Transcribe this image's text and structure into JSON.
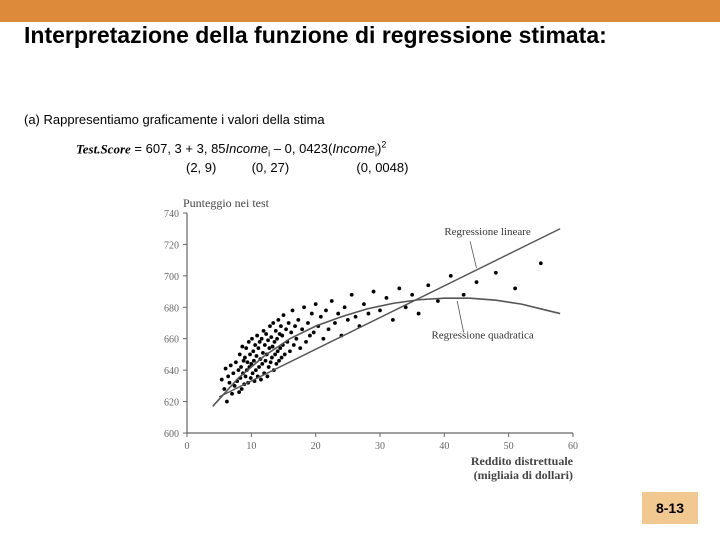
{
  "colors": {
    "accent": "#dd8a3a",
    "badge_bg": "#f0c890",
    "text": "#000000",
    "axis": "#666666",
    "scatter": "#000000",
    "line_linear": "#555555",
    "line_quad": "#555555",
    "chart_bg": "#ffffff"
  },
  "heading": {
    "text": "Interpretazione della funzione di regressione stimata:",
    "fontsize_pt": 23
  },
  "item_label": "(a)  Rappresentiamo graficamente i valori della stima",
  "item_fontsize_pt": 13,
  "equation": {
    "lhs": "Test.Score",
    "rhs_parts": {
      "eq": " = ",
      "c0": "607, 3",
      "plus": " + ",
      "c1": "3, 85",
      "var1": "Income",
      "minus": " – ",
      "c2": "0, 0423(",
      "var2": "Income",
      "close": ")",
      "sup": "2"
    },
    "se": {
      "s0": "(2, 9)",
      "s1": "(0, 27)",
      "s2": "(0, 0048)"
    },
    "fontsize_pt": 13
  },
  "page_number": "8-13",
  "chart": {
    "type": "scatter",
    "ylabel": "Punteggio nei test",
    "xlabel_line1": "Reddito distrettuale",
    "xlabel_line2": "(migliaia di dollari)",
    "label_fontsize_pt": 12,
    "tick_fontsize_pt": 10,
    "xlim": [
      0,
      60
    ],
    "ylim": [
      600,
      740
    ],
    "xticks": [
      0,
      10,
      20,
      30,
      40,
      50,
      60
    ],
    "yticks": [
      600,
      620,
      640,
      660,
      680,
      700,
      720,
      740
    ],
    "annotations": {
      "linear": "Regressione lineare",
      "quadratic": "Regressione quadratica"
    },
    "linear_line": {
      "x0": 5,
      "y0": 623,
      "x1": 58,
      "y1": 730,
      "width": 1.4
    },
    "quad_curve": {
      "pts": [
        [
          4,
          617
        ],
        [
          8,
          635
        ],
        [
          12,
          649
        ],
        [
          16,
          660
        ],
        [
          20,
          668
        ],
        [
          24,
          674
        ],
        [
          28,
          679
        ],
        [
          32,
          682.5
        ],
        [
          36,
          684.8
        ],
        [
          40,
          685.8
        ],
        [
          44,
          685.8
        ],
        [
          48,
          684.5
        ],
        [
          52,
          682
        ],
        [
          56,
          678
        ],
        [
          58,
          676
        ]
      ],
      "width": 1.6
    },
    "scatter_points": [
      [
        5.4,
        634
      ],
      [
        5.8,
        628
      ],
      [
        6.0,
        641
      ],
      [
        6.2,
        620
      ],
      [
        6.4,
        636
      ],
      [
        6.6,
        632
      ],
      [
        6.8,
        643
      ],
      [
        7.0,
        625
      ],
      [
        7.2,
        638
      ],
      [
        7.4,
        630
      ],
      [
        7.6,
        645
      ],
      [
        7.8,
        633
      ],
      [
        8.0,
        640
      ],
      [
        8.1,
        626
      ],
      [
        8.2,
        650
      ],
      [
        8.3,
        635
      ],
      [
        8.4,
        642
      ],
      [
        8.5,
        628
      ],
      [
        8.6,
        655
      ],
      [
        8.7,
        638
      ],
      [
        8.8,
        646
      ],
      [
        8.9,
        631
      ],
      [
        9.0,
        648
      ],
      [
        9.1,
        636
      ],
      [
        9.2,
        654
      ],
      [
        9.3,
        640
      ],
      [
        9.4,
        645
      ],
      [
        9.5,
        632
      ],
      [
        9.6,
        658
      ],
      [
        9.7,
        642
      ],
      [
        9.8,
        650
      ],
      [
        9.9,
        635
      ],
      [
        10.0,
        644
      ],
      [
        10.1,
        660
      ],
      [
        10.2,
        638
      ],
      [
        10.3,
        652
      ],
      [
        10.4,
        646
      ],
      [
        10.5,
        633
      ],
      [
        10.6,
        656
      ],
      [
        10.7,
        640
      ],
      [
        10.8,
        649
      ],
      [
        10.9,
        662
      ],
      [
        11.0,
        636
      ],
      [
        11.1,
        654
      ],
      [
        11.2,
        642
      ],
      [
        11.3,
        658
      ],
      [
        11.4,
        647
      ],
      [
        11.5,
        634
      ],
      [
        11.6,
        660
      ],
      [
        11.7,
        644
      ],
      [
        11.8,
        651
      ],
      [
        11.9,
        665
      ],
      [
        12.0,
        638
      ],
      [
        12.1,
        656
      ],
      [
        12.2,
        646
      ],
      [
        12.3,
        663
      ],
      [
        12.4,
        650
      ],
      [
        12.5,
        636
      ],
      [
        12.6,
        659
      ],
      [
        12.7,
        642
      ],
      [
        12.8,
        654
      ],
      [
        12.9,
        668
      ],
      [
        13.0,
        645
      ],
      [
        13.1,
        661
      ],
      [
        13.2,
        648
      ],
      [
        13.3,
        655
      ],
      [
        13.4,
        670
      ],
      [
        13.5,
        640
      ],
      [
        13.6,
        658
      ],
      [
        13.7,
        650
      ],
      [
        13.8,
        665
      ],
      [
        13.9,
        644
      ],
      [
        14.0,
        660
      ],
      [
        14.1,
        652
      ],
      [
        14.2,
        672
      ],
      [
        14.3,
        646
      ],
      [
        14.4,
        663
      ],
      [
        14.5,
        654
      ],
      [
        14.6,
        668
      ],
      [
        14.7,
        648
      ],
      [
        14.8,
        662
      ],
      [
        14.9,
        656
      ],
      [
        15.0,
        675
      ],
      [
        15.2,
        650
      ],
      [
        15.4,
        666
      ],
      [
        15.6,
        658
      ],
      [
        15.8,
        670
      ],
      [
        16.0,
        652
      ],
      [
        16.2,
        664
      ],
      [
        16.4,
        678
      ],
      [
        16.6,
        656
      ],
      [
        16.8,
        668
      ],
      [
        17.0,
        660
      ],
      [
        17.3,
        672
      ],
      [
        17.6,
        654
      ],
      [
        17.9,
        666
      ],
      [
        18.2,
        680
      ],
      [
        18.5,
        658
      ],
      [
        18.8,
        670
      ],
      [
        19.1,
        662
      ],
      [
        19.4,
        676
      ],
      [
        19.7,
        664
      ],
      [
        20.0,
        682
      ],
      [
        20.4,
        668
      ],
      [
        20.8,
        674
      ],
      [
        21.2,
        660
      ],
      [
        21.6,
        678
      ],
      [
        22.0,
        666
      ],
      [
        22.5,
        684
      ],
      [
        23.0,
        670
      ],
      [
        23.5,
        676
      ],
      [
        24.0,
        662
      ],
      [
        24.5,
        680
      ],
      [
        25.0,
        672
      ],
      [
        25.6,
        688
      ],
      [
        26.2,
        674
      ],
      [
        26.8,
        668
      ],
      [
        27.5,
        682
      ],
      [
        28.2,
        676
      ],
      [
        29.0,
        690
      ],
      [
        30.0,
        678
      ],
      [
        31.0,
        686
      ],
      [
        32.0,
        672
      ],
      [
        33.0,
        692
      ],
      [
        34.0,
        680
      ],
      [
        35.0,
        688
      ],
      [
        36.0,
        676
      ],
      [
        37.5,
        694
      ],
      [
        39.0,
        684
      ],
      [
        41.0,
        700
      ],
      [
        43.0,
        688
      ],
      [
        45.0,
        696
      ],
      [
        48.0,
        702
      ],
      [
        51.0,
        692
      ],
      [
        55.0,
        708
      ]
    ],
    "marker_radius": 1.9
  }
}
